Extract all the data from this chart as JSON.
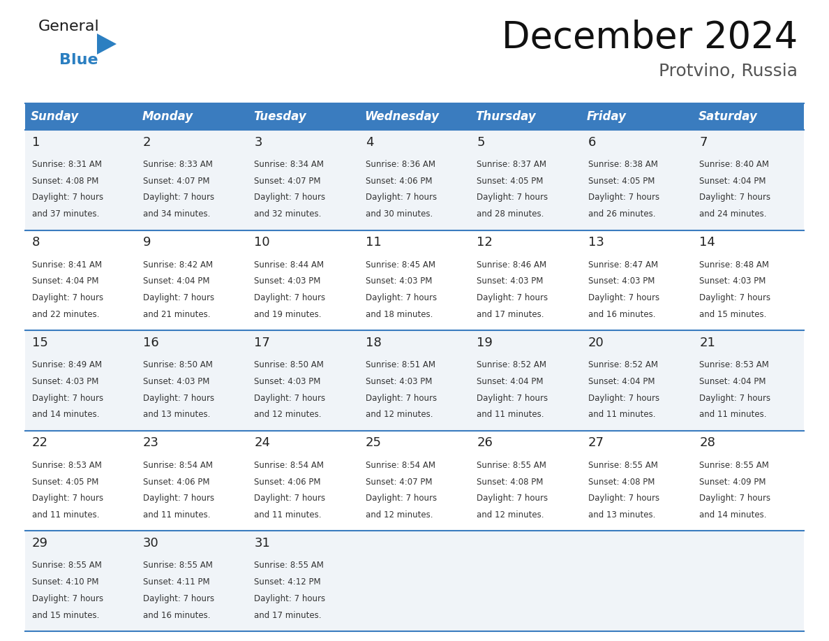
{
  "title": "December 2024",
  "subtitle": "Protvino, Russia",
  "header_bg_color": "#3a7cbf",
  "header_text_color": "#ffffff",
  "header_font_size": 12,
  "day_names": [
    "Sunday",
    "Monday",
    "Tuesday",
    "Wednesday",
    "Thursday",
    "Friday",
    "Saturday"
  ],
  "title_font_size": 38,
  "subtitle_font_size": 18,
  "cell_bg_color_odd": "#f0f4f8",
  "cell_bg_color_even": "#ffffff",
  "cell_text_color": "#333333",
  "line_color": "#3a7cbf",
  "days": [
    {
      "day": 1,
      "col": 0,
      "row": 0,
      "sunrise": "8:31 AM",
      "sunset": "4:08 PM",
      "daylight_hours": 7,
      "daylight_minutes": 37
    },
    {
      "day": 2,
      "col": 1,
      "row": 0,
      "sunrise": "8:33 AM",
      "sunset": "4:07 PM",
      "daylight_hours": 7,
      "daylight_minutes": 34
    },
    {
      "day": 3,
      "col": 2,
      "row": 0,
      "sunrise": "8:34 AM",
      "sunset": "4:07 PM",
      "daylight_hours": 7,
      "daylight_minutes": 32
    },
    {
      "day": 4,
      "col": 3,
      "row": 0,
      "sunrise": "8:36 AM",
      "sunset": "4:06 PM",
      "daylight_hours": 7,
      "daylight_minutes": 30
    },
    {
      "day": 5,
      "col": 4,
      "row": 0,
      "sunrise": "8:37 AM",
      "sunset": "4:05 PM",
      "daylight_hours": 7,
      "daylight_minutes": 28
    },
    {
      "day": 6,
      "col": 5,
      "row": 0,
      "sunrise": "8:38 AM",
      "sunset": "4:05 PM",
      "daylight_hours": 7,
      "daylight_minutes": 26
    },
    {
      "day": 7,
      "col": 6,
      "row": 0,
      "sunrise": "8:40 AM",
      "sunset": "4:04 PM",
      "daylight_hours": 7,
      "daylight_minutes": 24
    },
    {
      "day": 8,
      "col": 0,
      "row": 1,
      "sunrise": "8:41 AM",
      "sunset": "4:04 PM",
      "daylight_hours": 7,
      "daylight_minutes": 22
    },
    {
      "day": 9,
      "col": 1,
      "row": 1,
      "sunrise": "8:42 AM",
      "sunset": "4:04 PM",
      "daylight_hours": 7,
      "daylight_minutes": 21
    },
    {
      "day": 10,
      "col": 2,
      "row": 1,
      "sunrise": "8:44 AM",
      "sunset": "4:03 PM",
      "daylight_hours": 7,
      "daylight_minutes": 19
    },
    {
      "day": 11,
      "col": 3,
      "row": 1,
      "sunrise": "8:45 AM",
      "sunset": "4:03 PM",
      "daylight_hours": 7,
      "daylight_minutes": 18
    },
    {
      "day": 12,
      "col": 4,
      "row": 1,
      "sunrise": "8:46 AM",
      "sunset": "4:03 PM",
      "daylight_hours": 7,
      "daylight_minutes": 17
    },
    {
      "day": 13,
      "col": 5,
      "row": 1,
      "sunrise": "8:47 AM",
      "sunset": "4:03 PM",
      "daylight_hours": 7,
      "daylight_minutes": 16
    },
    {
      "day": 14,
      "col": 6,
      "row": 1,
      "sunrise": "8:48 AM",
      "sunset": "4:03 PM",
      "daylight_hours": 7,
      "daylight_minutes": 15
    },
    {
      "day": 15,
      "col": 0,
      "row": 2,
      "sunrise": "8:49 AM",
      "sunset": "4:03 PM",
      "daylight_hours": 7,
      "daylight_minutes": 14
    },
    {
      "day": 16,
      "col": 1,
      "row": 2,
      "sunrise": "8:50 AM",
      "sunset": "4:03 PM",
      "daylight_hours": 7,
      "daylight_minutes": 13
    },
    {
      "day": 17,
      "col": 2,
      "row": 2,
      "sunrise": "8:50 AM",
      "sunset": "4:03 PM",
      "daylight_hours": 7,
      "daylight_minutes": 12
    },
    {
      "day": 18,
      "col": 3,
      "row": 2,
      "sunrise": "8:51 AM",
      "sunset": "4:03 PM",
      "daylight_hours": 7,
      "daylight_minutes": 12
    },
    {
      "day": 19,
      "col": 4,
      "row": 2,
      "sunrise": "8:52 AM",
      "sunset": "4:04 PM",
      "daylight_hours": 7,
      "daylight_minutes": 11
    },
    {
      "day": 20,
      "col": 5,
      "row": 2,
      "sunrise": "8:52 AM",
      "sunset": "4:04 PM",
      "daylight_hours": 7,
      "daylight_minutes": 11
    },
    {
      "day": 21,
      "col": 6,
      "row": 2,
      "sunrise": "8:53 AM",
      "sunset": "4:04 PM",
      "daylight_hours": 7,
      "daylight_minutes": 11
    },
    {
      "day": 22,
      "col": 0,
      "row": 3,
      "sunrise": "8:53 AM",
      "sunset": "4:05 PM",
      "daylight_hours": 7,
      "daylight_minutes": 11
    },
    {
      "day": 23,
      "col": 1,
      "row": 3,
      "sunrise": "8:54 AM",
      "sunset": "4:06 PM",
      "daylight_hours": 7,
      "daylight_minutes": 11
    },
    {
      "day": 24,
      "col": 2,
      "row": 3,
      "sunrise": "8:54 AM",
      "sunset": "4:06 PM",
      "daylight_hours": 7,
      "daylight_minutes": 11
    },
    {
      "day": 25,
      "col": 3,
      "row": 3,
      "sunrise": "8:54 AM",
      "sunset": "4:07 PM",
      "daylight_hours": 7,
      "daylight_minutes": 12
    },
    {
      "day": 26,
      "col": 4,
      "row": 3,
      "sunrise": "8:55 AM",
      "sunset": "4:08 PM",
      "daylight_hours": 7,
      "daylight_minutes": 12
    },
    {
      "day": 27,
      "col": 5,
      "row": 3,
      "sunrise": "8:55 AM",
      "sunset": "4:08 PM",
      "daylight_hours": 7,
      "daylight_minutes": 13
    },
    {
      "day": 28,
      "col": 6,
      "row": 3,
      "sunrise": "8:55 AM",
      "sunset": "4:09 PM",
      "daylight_hours": 7,
      "daylight_minutes": 14
    },
    {
      "day": 29,
      "col": 0,
      "row": 4,
      "sunrise": "8:55 AM",
      "sunset": "4:10 PM",
      "daylight_hours": 7,
      "daylight_minutes": 15
    },
    {
      "day": 30,
      "col": 1,
      "row": 4,
      "sunrise": "8:55 AM",
      "sunset": "4:11 PM",
      "daylight_hours": 7,
      "daylight_minutes": 16
    },
    {
      "day": 31,
      "col": 2,
      "row": 4,
      "sunrise": "8:55 AM",
      "sunset": "4:12 PM",
      "daylight_hours": 7,
      "daylight_minutes": 17
    }
  ],
  "logo_general_color": "#1a1a1a",
  "logo_blue_color": "#2b7fc1",
  "bg_color": "#ffffff"
}
